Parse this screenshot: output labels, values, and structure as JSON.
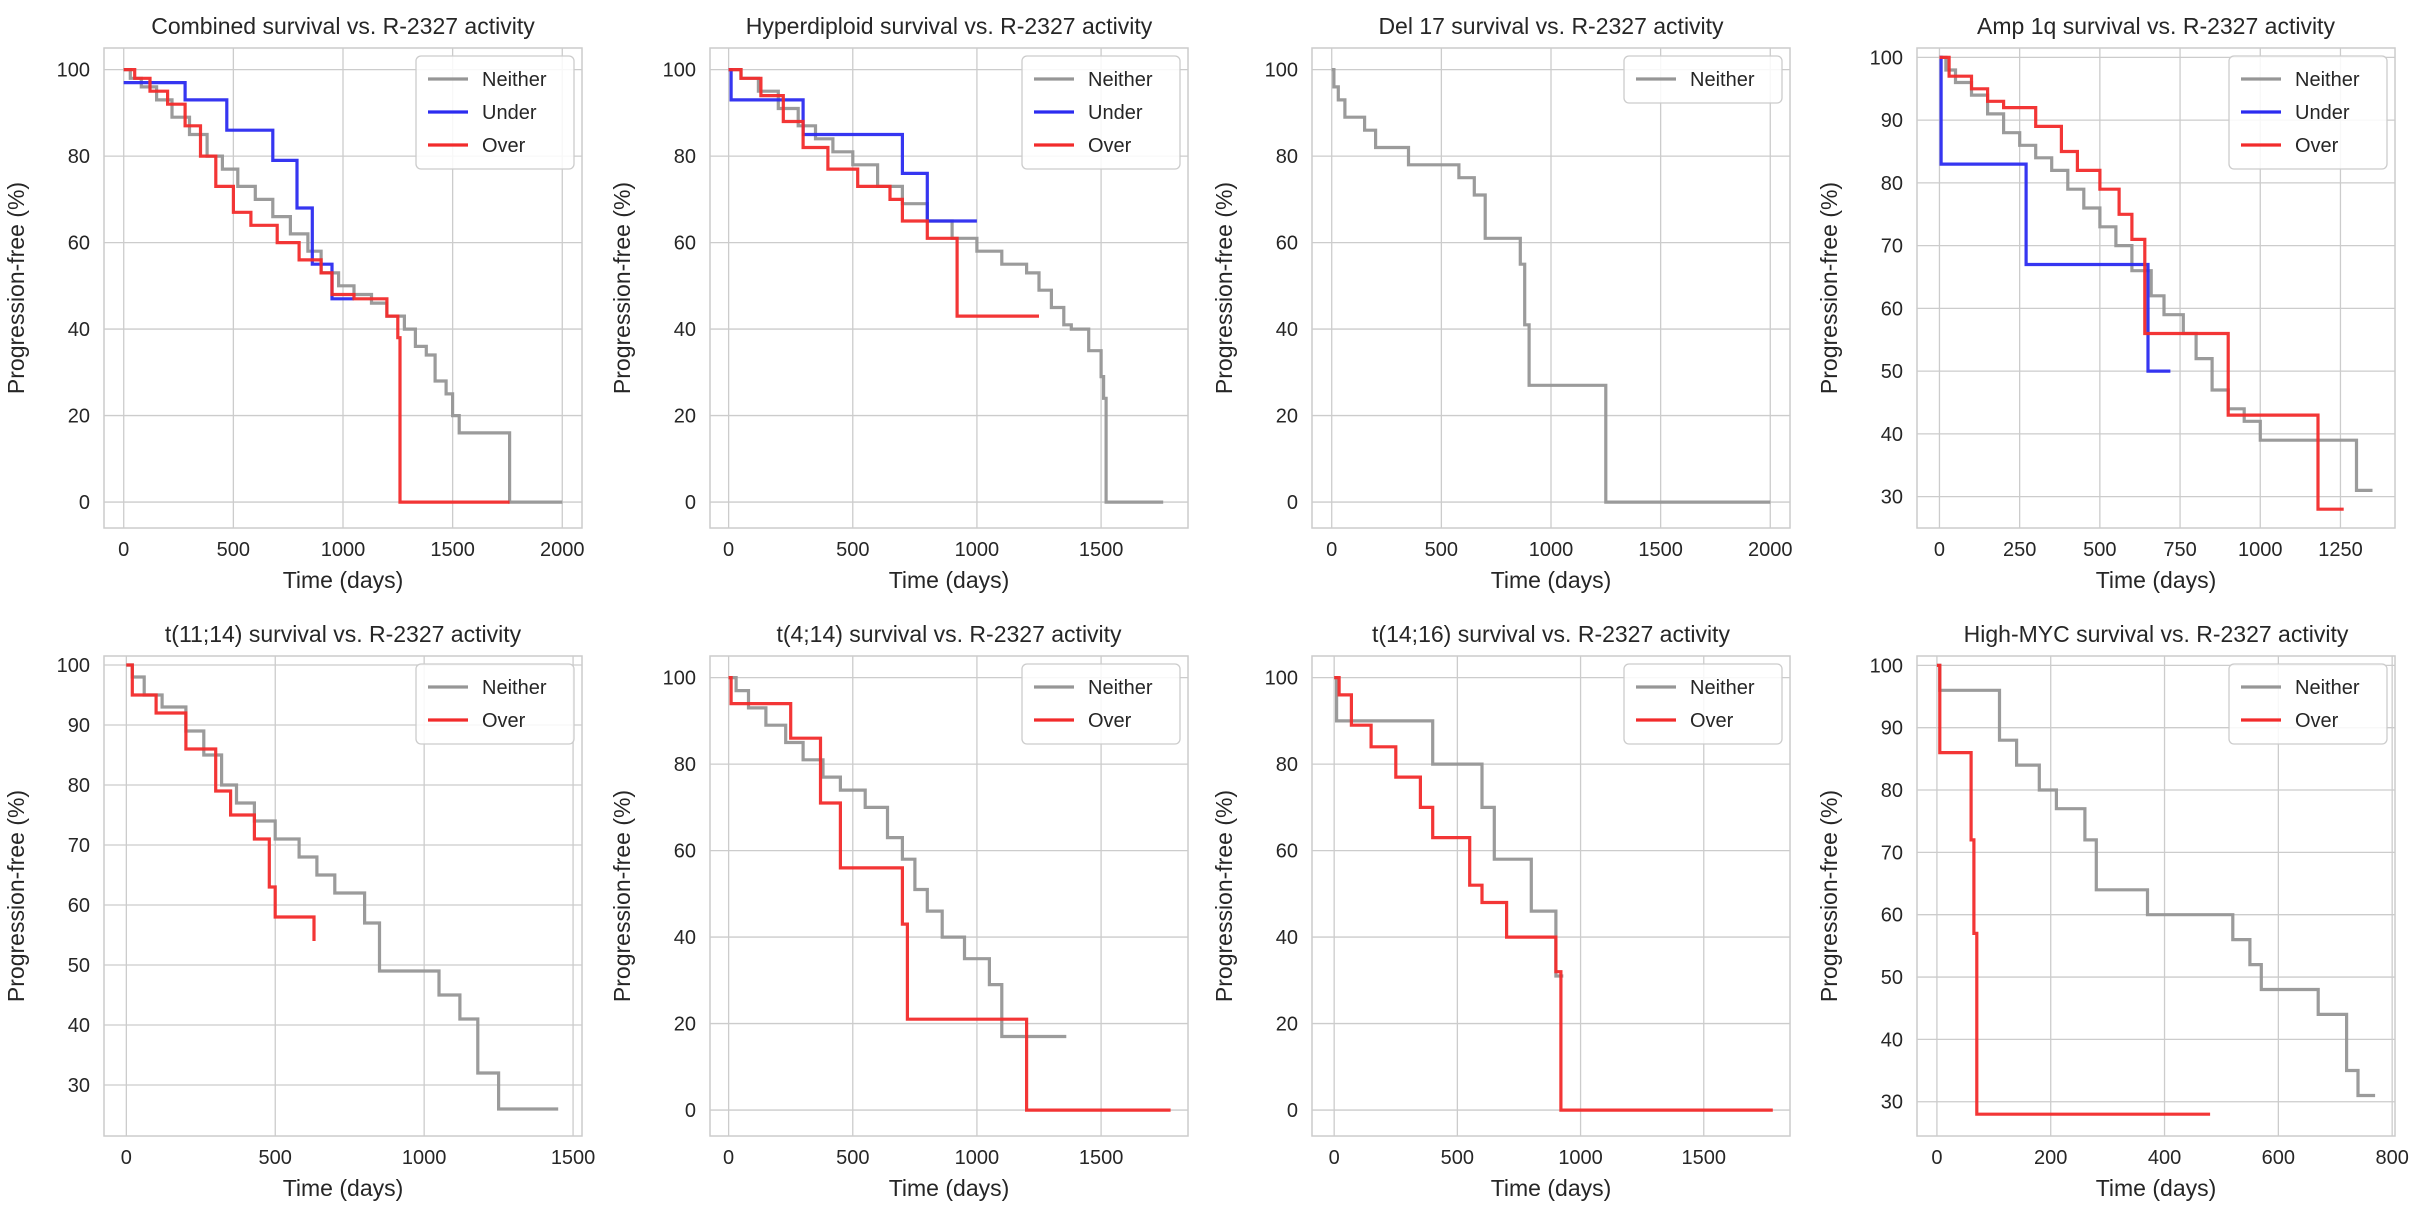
{
  "colors": {
    "Neither": "#969696",
    "Under": "#2b2bf0",
    "Over": "#f22b2b"
  },
  "chart_data": [
    {
      "type": "line",
      "title": "Combined survival vs. R-2327 activity",
      "xlabel": "Time (days)",
      "ylabel": "Progression-free (%)",
      "xlim": [
        -90,
        2090
      ],
      "ylim": [
        -6,
        105
      ],
      "xticks": [
        0,
        500,
        1000,
        1500,
        2000
      ],
      "yticks": [
        0,
        20,
        40,
        60,
        80,
        100
      ],
      "grid": true,
      "legend": "top-right",
      "series": [
        {
          "name": "Neither",
          "x": [
            0,
            30,
            80,
            150,
            220,
            300,
            380,
            450,
            520,
            600,
            680,
            760,
            840,
            900,
            980,
            1050,
            1130,
            1200,
            1280,
            1330,
            1380,
            1420,
            1470,
            1500,
            1530,
            1760,
            2000
          ],
          "y": [
            100,
            98,
            96,
            93,
            89,
            85,
            80,
            77,
            73,
            70,
            66,
            62,
            58,
            53,
            50,
            48,
            46,
            43,
            40,
            36,
            34,
            28,
            25,
            20,
            16,
            0,
            0
          ]
        },
        {
          "name": "Under",
          "x": [
            0,
            280,
            470,
            680,
            790,
            860,
            950,
            1050
          ],
          "y": [
            97,
            93,
            86,
            79,
            68,
            55,
            47,
            47
          ]
        },
        {
          "name": "Over",
          "x": [
            0,
            50,
            120,
            200,
            280,
            350,
            420,
            500,
            580,
            700,
            800,
            900,
            950,
            1050,
            1200,
            1250,
            1260,
            1760
          ],
          "y": [
            100,
            98,
            95,
            92,
            87,
            80,
            73,
            67,
            64,
            60,
            56,
            53,
            48,
            47,
            43,
            38,
            0,
            0
          ]
        }
      ]
    },
    {
      "type": "line",
      "title": "Hyperdiploid survival vs. R-2327 activity",
      "xlabel": "Time (days)",
      "ylabel": "Progression-free (%)",
      "xlim": [
        -75,
        1850
      ],
      "ylim": [
        -6,
        105
      ],
      "xticks": [
        0,
        500,
        1000,
        1500
      ],
      "yticks": [
        0,
        20,
        40,
        60,
        80,
        100
      ],
      "grid": true,
      "legend": "top-right",
      "series": [
        {
          "name": "Neither",
          "x": [
            0,
            50,
            120,
            200,
            280,
            350,
            420,
            500,
            600,
            700,
            800,
            900,
            1000,
            1100,
            1200,
            1250,
            1300,
            1350,
            1380,
            1450,
            1500,
            1510,
            1520,
            1750
          ],
          "y": [
            100,
            98,
            95,
            91,
            87,
            84,
            81,
            78,
            73,
            69,
            65,
            61,
            58,
            55,
            53,
            49,
            45,
            41,
            40,
            35,
            29,
            24,
            0,
            0
          ]
        },
        {
          "name": "Under",
          "x": [
            0,
            10,
            300,
            700,
            800,
            1000
          ],
          "y": [
            100,
            93,
            85,
            76,
            65,
            65
          ]
        },
        {
          "name": "Over",
          "x": [
            0,
            50,
            130,
            220,
            300,
            400,
            520,
            650,
            700,
            800,
            920,
            1250
          ],
          "y": [
            100,
            98,
            94,
            88,
            82,
            77,
            73,
            70,
            65,
            61,
            43,
            43
          ]
        }
      ]
    },
    {
      "type": "line",
      "title": "Del 17 survival vs. R-2327 activity",
      "xlabel": "Time (days)",
      "ylabel": "Progression-free (%)",
      "xlim": [
        -90,
        2090
      ],
      "ylim": [
        -6,
        105
      ],
      "xticks": [
        0,
        500,
        1000,
        1500,
        2000
      ],
      "yticks": [
        0,
        20,
        40,
        60,
        80,
        100
      ],
      "grid": true,
      "legend": "top-right",
      "series": [
        {
          "name": "Neither",
          "x": [
            0,
            10,
            30,
            60,
            150,
            200,
            350,
            580,
            650,
            700,
            860,
            880,
            900,
            1250,
            2000
          ],
          "y": [
            100,
            96,
            93,
            89,
            86,
            82,
            78,
            75,
            71,
            61,
            55,
            41,
            27,
            0,
            0
          ]
        }
      ]
    },
    {
      "type": "line",
      "title": "Amp 1q survival vs. R-2327 activity",
      "xlabel": "Time (days)",
      "ylabel": "Progression-free (%)",
      "xlim": [
        -70,
        1420
      ],
      "ylim": [
        25,
        101.5
      ],
      "xticks": [
        0,
        250,
        500,
        750,
        1000,
        1250
      ],
      "yticks": [
        30,
        40,
        50,
        60,
        70,
        80,
        90,
        100
      ],
      "grid": true,
      "legend": "top-right",
      "series": [
        {
          "name": "Neither",
          "x": [
            0,
            20,
            50,
            100,
            150,
            200,
            250,
            300,
            350,
            400,
            450,
            500,
            550,
            600,
            660,
            700,
            760,
            800,
            850,
            900,
            950,
            1000,
            1200,
            1300,
            1350
          ],
          "y": [
            100,
            98,
            96,
            94,
            91,
            88,
            86,
            84,
            82,
            79,
            76,
            73,
            70,
            66,
            62,
            59,
            56,
            52,
            47,
            44,
            42,
            39,
            39,
            31,
            31
          ]
        },
        {
          "name": "Under",
          "x": [
            0,
            5,
            270,
            640,
            650,
            720
          ],
          "y": [
            100,
            83,
            67,
            67,
            50,
            50
          ]
        },
        {
          "name": "Over",
          "x": [
            0,
            30,
            100,
            150,
            200,
            300,
            380,
            430,
            500,
            560,
            600,
            640,
            900,
            1180,
            1260
          ],
          "y": [
            100,
            97,
            95,
            93,
            92,
            89,
            85,
            82,
            79,
            75,
            71,
            56,
            43,
            28,
            28
          ]
        }
      ]
    },
    {
      "type": "line",
      "title": "t(11;14) survival vs. R-2327 activity",
      "xlabel": "Time (days)",
      "ylabel": "Progression-free (%)",
      "xlim": [
        -75,
        1530
      ],
      "ylim": [
        21.5,
        101.5
      ],
      "xticks": [
        0,
        500,
        1000,
        1500
      ],
      "yticks": [
        30,
        40,
        50,
        60,
        70,
        80,
        90,
        100
      ],
      "grid": true,
      "legend": "top-right",
      "series": [
        {
          "name": "Neither",
          "x": [
            0,
            20,
            60,
            120,
            200,
            260,
            320,
            370,
            430,
            500,
            580,
            640,
            700,
            800,
            850,
            1050,
            1120,
            1180,
            1250,
            1450
          ],
          "y": [
            100,
            98,
            95,
            93,
            89,
            85,
            80,
            77,
            74,
            71,
            68,
            65,
            62,
            57,
            49,
            45,
            41,
            32,
            26,
            26
          ]
        },
        {
          "name": "Over",
          "x": [
            0,
            20,
            100,
            200,
            300,
            350,
            430,
            480,
            500,
            630
          ],
          "y": [
            100,
            95,
            92,
            86,
            79,
            75,
            71,
            63,
            58,
            54
          ]
        }
      ]
    },
    {
      "type": "line",
      "title": "t(4;14) survival vs. R-2327 activity",
      "xlabel": "Time (days)",
      "ylabel": "Progression-free (%)",
      "xlim": [
        -75,
        1850
      ],
      "ylim": [
        -6,
        105
      ],
      "xticks": [
        0,
        500,
        1000,
        1500
      ],
      "yticks": [
        0,
        20,
        40,
        60,
        80,
        100
      ],
      "grid": true,
      "legend": "top-right",
      "series": [
        {
          "name": "Neither",
          "x": [
            0,
            30,
            80,
            150,
            230,
            300,
            380,
            450,
            550,
            640,
            700,
            750,
            800,
            860,
            950,
            1050,
            1100,
            1360
          ],
          "y": [
            100,
            97,
            93,
            89,
            85,
            81,
            77,
            74,
            70,
            63,
            58,
            51,
            46,
            40,
            35,
            29,
            17,
            17
          ]
        },
        {
          "name": "Over",
          "x": [
            0,
            10,
            250,
            370,
            450,
            700,
            720,
            1180,
            1200,
            1780
          ],
          "y": [
            100,
            94,
            86,
            71,
            56,
            43,
            21,
            21,
            0,
            0
          ]
        }
      ]
    },
    {
      "type": "line",
      "title": "t(14;16) survival vs. R-2327 activity",
      "xlabel": "Time (days)",
      "ylabel": "Progression-free (%)",
      "xlim": [
        -90,
        1850
      ],
      "ylim": [
        -6,
        105
      ],
      "xticks": [
        0,
        500,
        1000,
        1500
      ],
      "yticks": [
        0,
        20,
        40,
        60,
        80,
        100
      ],
      "grid": true,
      "legend": "top-right",
      "series": [
        {
          "name": "Neither",
          "x": [
            0,
            10,
            400,
            600,
            650,
            800,
            900,
            930
          ],
          "y": [
            100,
            90,
            80,
            70,
            58,
            46,
            31,
            31
          ]
        },
        {
          "name": "Over",
          "x": [
            0,
            20,
            70,
            150,
            250,
            350,
            400,
            550,
            600,
            700,
            900,
            920,
            1780
          ],
          "y": [
            100,
            96,
            89,
            84,
            77,
            70,
            63,
            52,
            48,
            40,
            32,
            0,
            0
          ]
        }
      ]
    },
    {
      "type": "line",
      "title": "High-MYC survival vs. R-2327 activity",
      "xlabel": "Time (days)",
      "ylabel": "Progression-free (%)",
      "xlim": [
        -35,
        805
      ],
      "ylim": [
        24.5,
        101.5
      ],
      "xticks": [
        0,
        200,
        400,
        600,
        800
      ],
      "yticks": [
        30,
        40,
        50,
        60,
        70,
        80,
        90,
        100
      ],
      "grid": true,
      "legend": "top-right",
      "series": [
        {
          "name": "Neither",
          "x": [
            0,
            5,
            110,
            140,
            180,
            210,
            260,
            280,
            370,
            520,
            550,
            570,
            670,
            720,
            740,
            770
          ],
          "y": [
            100,
            96,
            88,
            84,
            80,
            77,
            72,
            64,
            60,
            56,
            52,
            48,
            44,
            35,
            31,
            31
          ]
        },
        {
          "name": "Over",
          "x": [
            0,
            5,
            60,
            65,
            70,
            480
          ],
          "y": [
            100,
            86,
            72,
            57,
            28,
            28
          ]
        }
      ]
    }
  ]
}
